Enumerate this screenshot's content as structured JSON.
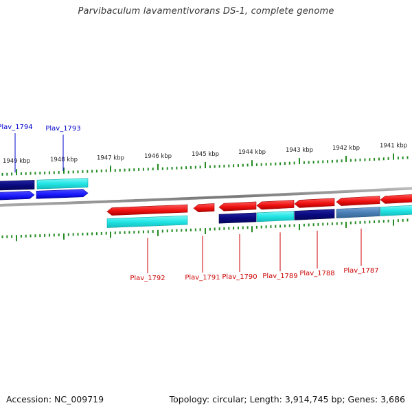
{
  "title": "Parvibaculum lavamentivorans DS-1, complete genome",
  "footer": {
    "accession": "Accession: NC_009719",
    "summary": "Topology: circular; Length: 3,914,745 bp; Genes: 3,686"
  },
  "colors": {
    "forward_gene": "#1a1aff",
    "reverse_gene": "#ee1111",
    "cds_cyan": "#22dddd",
    "cds_navy": "#0a0a80",
    "cds_steel": "#4a7fb5",
    "backbone": "#888888",
    "tick": "#228b22"
  },
  "scale": {
    "unit": "kbp",
    "labels": [
      "1949 kbp",
      "1948 kbp",
      "1947 kbp",
      "1946 kbp",
      "1945 kbp",
      "1944 kbp",
      "1943 kbp",
      "1942 kbp",
      "1941 kbp"
    ]
  },
  "genes": [
    {
      "label": "Plav_1794",
      "strand": "+",
      "cds": "navy"
    },
    {
      "label": "Plav_1793",
      "strand": "+",
      "cds": "cyan"
    },
    {
      "label": "Plav_1792",
      "strand": "-",
      "cds": "cyan"
    },
    {
      "label": "Plav_1791",
      "strand": "-",
      "cds": ""
    },
    {
      "label": "Plav_1790",
      "strand": "-",
      "cds": "navy"
    },
    {
      "label": "Plav_1789",
      "strand": "-",
      "cds": "cyan"
    },
    {
      "label": "Plav_1788",
      "strand": "-",
      "cds": "navy"
    },
    {
      "label": "Plav_1787",
      "strand": "-",
      "cds": "steel"
    },
    {
      "label": "",
      "strand": "-",
      "cds": "cyan"
    }
  ]
}
